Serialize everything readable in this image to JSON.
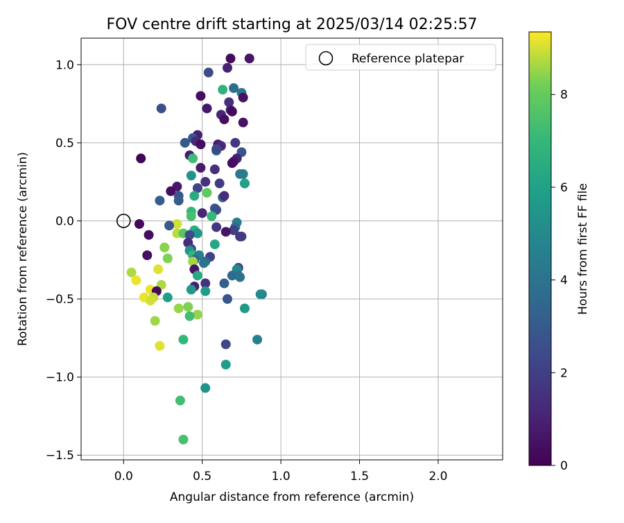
{
  "chart_data": {
    "type": "scatter",
    "title": "FOV centre drift starting at 2025/03/14 02:25:57",
    "xlabel": "Angular distance from reference (arcmin)",
    "ylabel": "Rotation from reference (arcmin)",
    "xlim": [
      -0.27,
      2.41
    ],
    "ylim": [
      -1.53,
      1.17
    ],
    "x_ticks": [
      0.0,
      0.5,
      1.0,
      1.5,
      2.0
    ],
    "x_tick_labels": [
      "0.0",
      "0.5",
      "1.0",
      "1.5",
      "2.0"
    ],
    "y_ticks": [
      1.0,
      0.5,
      0.0,
      -0.5,
      -1.0,
      -1.5
    ],
    "y_tick_labels": [
      "1.0",
      "0.5",
      "0.0",
      "−0.5",
      "−1.0",
      "−1.5"
    ],
    "grid": true,
    "legend": {
      "position": "top-right",
      "entries": [
        {
          "label": "Reference platepar",
          "marker": "open-circle"
        }
      ]
    },
    "reference_point": {
      "x": 0.0,
      "y": 0.0
    },
    "colorbar": {
      "label": "Hours from first FF file",
      "colormap": "viridis",
      "range": [
        0,
        9.35
      ],
      "ticks": [
        0,
        2,
        4,
        6,
        8
      ],
      "tick_labels": [
        "0",
        "2",
        "4",
        "6",
        "8"
      ]
    },
    "points": [
      {
        "x": 0.68,
        "y": 1.04,
        "c": 0.3
      },
      {
        "x": 0.8,
        "y": 1.04,
        "c": 0.6
      },
      {
        "x": 0.66,
        "y": 0.98,
        "c": 1.0
      },
      {
        "x": 0.54,
        "y": 0.95,
        "c": 2.5
      },
      {
        "x": 0.7,
        "y": 0.85,
        "c": 3.8
      },
      {
        "x": 0.63,
        "y": 0.84,
        "c": 6.8
      },
      {
        "x": 0.75,
        "y": 0.82,
        "c": 4.2
      },
      {
        "x": 0.49,
        "y": 0.8,
        "c": 0.4
      },
      {
        "x": 0.76,
        "y": 0.79,
        "c": 0.5
      },
      {
        "x": 0.67,
        "y": 0.76,
        "c": 1.5
      },
      {
        "x": 0.24,
        "y": 0.72,
        "c": 2.6
      },
      {
        "x": 0.53,
        "y": 0.72,
        "c": 0.7
      },
      {
        "x": 0.68,
        "y": 0.71,
        "c": 0.9
      },
      {
        "x": 0.69,
        "y": 0.7,
        "c": 0.3
      },
      {
        "x": 0.62,
        "y": 0.68,
        "c": 1.1
      },
      {
        "x": 0.64,
        "y": 0.65,
        "c": 0.4
      },
      {
        "x": 0.76,
        "y": 0.63,
        "c": 0.5
      },
      {
        "x": 0.47,
        "y": 0.55,
        "c": 0.9
      },
      {
        "x": 0.44,
        "y": 0.53,
        "c": 2.8
      },
      {
        "x": 0.39,
        "y": 0.5,
        "c": 2.9
      },
      {
        "x": 0.46,
        "y": 0.51,
        "c": 1.2
      },
      {
        "x": 0.49,
        "y": 0.49,
        "c": 0.4
      },
      {
        "x": 0.6,
        "y": 0.49,
        "c": 0.8
      },
      {
        "x": 0.62,
        "y": 0.48,
        "c": 1.2
      },
      {
        "x": 0.71,
        "y": 0.5,
        "c": 1.7
      },
      {
        "x": 0.59,
        "y": 0.45,
        "c": 3.7
      },
      {
        "x": 0.59,
        "y": 0.46,
        "c": 2.3
      },
      {
        "x": 0.75,
        "y": 0.44,
        "c": 2.7
      },
      {
        "x": 0.42,
        "y": 0.42,
        "c": 0.8
      },
      {
        "x": 0.11,
        "y": 0.4,
        "c": 0.1
      },
      {
        "x": 0.72,
        "y": 0.4,
        "c": 1.0
      },
      {
        "x": 0.7,
        "y": 0.38,
        "c": 0.6
      },
      {
        "x": 0.44,
        "y": 0.4,
        "c": 7.2
      },
      {
        "x": 0.69,
        "y": 0.37,
        "c": 0.4
      },
      {
        "x": 0.49,
        "y": 0.34,
        "c": 0.8
      },
      {
        "x": 0.58,
        "y": 0.33,
        "c": 1.4
      },
      {
        "x": 0.74,
        "y": 0.3,
        "c": 4.1
      },
      {
        "x": 0.76,
        "y": 0.3,
        "c": 4.4
      },
      {
        "x": 0.43,
        "y": 0.29,
        "c": 5.4
      },
      {
        "x": 0.52,
        "y": 0.25,
        "c": 1.5
      },
      {
        "x": 0.61,
        "y": 0.24,
        "c": 1.8
      },
      {
        "x": 0.77,
        "y": 0.24,
        "c": 5.8
      },
      {
        "x": 0.77,
        "y": 0.24,
        "c": 6.0
      },
      {
        "x": 0.34,
        "y": 0.22,
        "c": 0.7
      },
      {
        "x": 0.3,
        "y": 0.19,
        "c": 0.4
      },
      {
        "x": 0.47,
        "y": 0.21,
        "c": 2.2
      },
      {
        "x": 0.53,
        "y": 0.18,
        "c": 7.9
      },
      {
        "x": 0.35,
        "y": 0.16,
        "c": 2.8
      },
      {
        "x": 0.45,
        "y": 0.16,
        "c": 6.4
      },
      {
        "x": 0.63,
        "y": 0.15,
        "c": 3.5
      },
      {
        "x": 0.64,
        "y": 0.16,
        "c": 1.3
      },
      {
        "x": 0.23,
        "y": 0.13,
        "c": 3.1
      },
      {
        "x": 0.35,
        "y": 0.13,
        "c": 3.0
      },
      {
        "x": 0.43,
        "y": 0.06,
        "c": 6.9
      },
      {
        "x": 0.58,
        "y": 0.08,
        "c": 3.0
      },
      {
        "x": 0.59,
        "y": 0.07,
        "c": 2.5
      },
      {
        "x": 0.43,
        "y": 0.03,
        "c": 7.4
      },
      {
        "x": 0.5,
        "y": 0.05,
        "c": 1.1
      },
      {
        "x": 0.56,
        "y": 0.03,
        "c": 7.0
      },
      {
        "x": 0.1,
        "y": -0.02,
        "c": 0.2
      },
      {
        "x": 0.34,
        "y": -0.02,
        "c": 9.0
      },
      {
        "x": 0.29,
        "y": -0.03,
        "c": 2.9
      },
      {
        "x": 0.72,
        "y": -0.01,
        "c": 4.5
      },
      {
        "x": 0.71,
        "y": -0.04,
        "c": 3.7
      },
      {
        "x": 0.59,
        "y": -0.04,
        "c": 1.7
      },
      {
        "x": 0.7,
        "y": -0.06,
        "c": 2.0
      },
      {
        "x": 0.65,
        "y": -0.07,
        "c": 0.6
      },
      {
        "x": 0.45,
        "y": -0.06,
        "c": 6.6
      },
      {
        "x": 0.47,
        "y": -0.08,
        "c": 5.6
      },
      {
        "x": 0.34,
        "y": -0.08,
        "c": 8.8
      },
      {
        "x": 0.38,
        "y": -0.08,
        "c": 7.8
      },
      {
        "x": 0.42,
        "y": -0.09,
        "c": 2.5
      },
      {
        "x": 0.16,
        "y": -0.09,
        "c": 0.4
      },
      {
        "x": 0.74,
        "y": -0.1,
        "c": 1.6
      },
      {
        "x": 0.75,
        "y": -0.1,
        "c": 1.9
      },
      {
        "x": 0.41,
        "y": -0.14,
        "c": 1.3
      },
      {
        "x": 0.58,
        "y": -0.15,
        "c": 6.2
      },
      {
        "x": 0.26,
        "y": -0.17,
        "c": 8.4
      },
      {
        "x": 0.43,
        "y": -0.18,
        "c": 2.1
      },
      {
        "x": 0.42,
        "y": -0.19,
        "c": 5.5
      },
      {
        "x": 0.15,
        "y": -0.22,
        "c": 0.4
      },
      {
        "x": 0.44,
        "y": -0.22,
        "c": 6.9
      },
      {
        "x": 0.48,
        "y": -0.22,
        "c": 4.6
      },
      {
        "x": 0.55,
        "y": -0.23,
        "c": 2.1
      },
      {
        "x": 0.28,
        "y": -0.24,
        "c": 8.3
      },
      {
        "x": 0.45,
        "y": -0.25,
        "c": 3.1
      },
      {
        "x": 0.44,
        "y": -0.26,
        "c": 8.6
      },
      {
        "x": 0.52,
        "y": -0.26,
        "c": 3.4
      },
      {
        "x": 0.51,
        "y": -0.27,
        "c": 4.1
      },
      {
        "x": 0.45,
        "y": -0.31,
        "c": 0.6
      },
      {
        "x": 0.22,
        "y": -0.31,
        "c": 9.1
      },
      {
        "x": 0.73,
        "y": -0.3,
        "c": 2.2
      },
      {
        "x": 0.05,
        "y": -0.33,
        "c": 8.7
      },
      {
        "x": 0.72,
        "y": -0.31,
        "c": 4.9
      },
      {
        "x": 0.73,
        "y": -0.35,
        "c": 3.9
      },
      {
        "x": 0.47,
        "y": -0.35,
        "c": 6.3
      },
      {
        "x": 0.69,
        "y": -0.35,
        "c": 3.6
      },
      {
        "x": 0.74,
        "y": -0.36,
        "c": 3.9
      },
      {
        "x": 0.08,
        "y": -0.38,
        "c": 9.2
      },
      {
        "x": 0.52,
        "y": -0.4,
        "c": 1.5
      },
      {
        "x": 0.64,
        "y": -0.4,
        "c": 3.2
      },
      {
        "x": 0.24,
        "y": -0.41,
        "c": 8.7
      },
      {
        "x": 0.45,
        "y": -0.42,
        "c": 0.9
      },
      {
        "x": 0.43,
        "y": -0.44,
        "c": 5.6
      },
      {
        "x": 0.17,
        "y": -0.44,
        "c": 9.2
      },
      {
        "x": 0.21,
        "y": -0.45,
        "c": 0.3
      },
      {
        "x": 0.52,
        "y": -0.45,
        "c": 5.7
      },
      {
        "x": 0.13,
        "y": -0.49,
        "c": 9.2
      },
      {
        "x": 0.19,
        "y": -0.49,
        "c": 8.9
      },
      {
        "x": 0.28,
        "y": -0.49,
        "c": 5.9
      },
      {
        "x": 0.17,
        "y": -0.51,
        "c": 9.0
      },
      {
        "x": 0.66,
        "y": -0.5,
        "c": 2.8
      },
      {
        "x": 0.35,
        "y": -0.56,
        "c": 8.5
      },
      {
        "x": 0.41,
        "y": -0.55,
        "c": 8.3
      },
      {
        "x": 0.77,
        "y": -0.56,
        "c": 5.6
      },
      {
        "x": 0.47,
        "y": -0.6,
        "c": 8.5
      },
      {
        "x": 0.42,
        "y": -0.61,
        "c": 7.3
      },
      {
        "x": 0.2,
        "y": -0.64,
        "c": 8.6
      },
      {
        "x": 0.88,
        "y": -0.47,
        "c": 4.6
      },
      {
        "x": 0.87,
        "y": -0.47,
        "c": 5.0
      },
      {
        "x": 0.85,
        "y": -0.76,
        "c": 4.6
      },
      {
        "x": 0.38,
        "y": -0.76,
        "c": 7.0
      },
      {
        "x": 0.65,
        "y": -0.79,
        "c": 2.3
      },
      {
        "x": 0.23,
        "y": -0.8,
        "c": 9.1
      },
      {
        "x": 0.65,
        "y": -0.92,
        "c": 5.8
      },
      {
        "x": 0.52,
        "y": -1.07,
        "c": 5.4
      },
      {
        "x": 0.36,
        "y": -1.15,
        "c": 7.3
      },
      {
        "x": 0.38,
        "y": -1.4,
        "c": 7.4
      }
    ]
  }
}
